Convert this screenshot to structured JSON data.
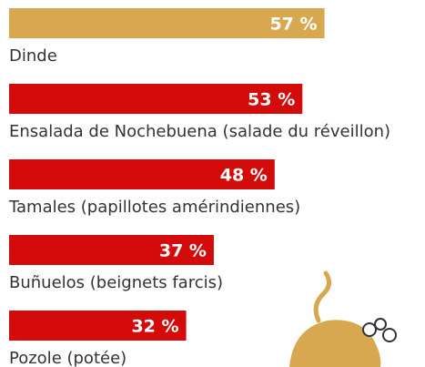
{
  "chart_data": {
    "type": "bar",
    "orientation": "horizontal",
    "categories": [
      "Dinde",
      "Ensalada de Nochebuena (salade du réveillon)",
      "Tamales (papillotes amérindiennes)",
      "Buñuelos (beignets farcis)",
      "Pozole (potée)"
    ],
    "values": [
      57,
      53,
      48,
      37,
      32
    ],
    "value_labels": [
      "57 %",
      "53 %",
      "48 %",
      "37 %",
      "32 %"
    ],
    "colors": [
      "#d8a851",
      "#d40b0b",
      "#d40b0b",
      "#d40b0b",
      "#d40b0b"
    ]
  }
}
